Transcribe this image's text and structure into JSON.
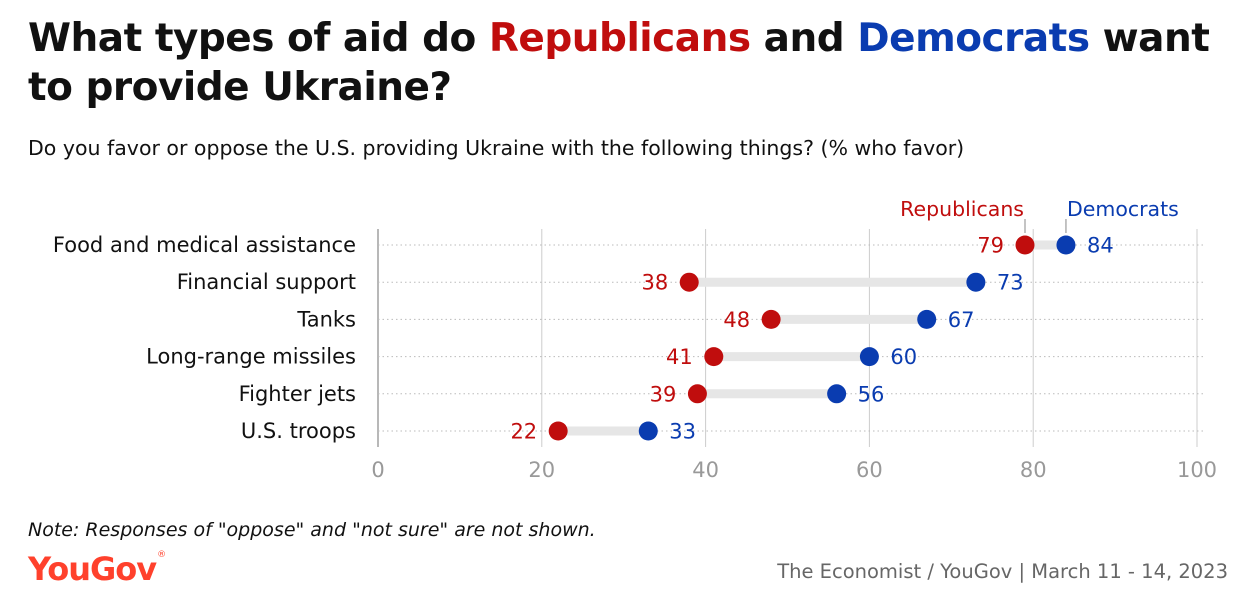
{
  "title": {
    "part1": "What types of aid do ",
    "rep": "Republicans",
    "part2": " and ",
    "dem": "Democrats",
    "part3": " want to provide Ukraine?"
  },
  "subtitle": "Do you favor or oppose the U.S. providing Ukraine with the following things? (% who favor)",
  "note": "Note: Responses of \"oppose\" and \"not sure\" are not shown.",
  "brand": "YouGov",
  "source": "The Economist / YouGov | March 11 - 14, 2023",
  "colors": {
    "republicans": "#c00d0d",
    "democrats": "#0a3cb0",
    "connector": "#e6e6e6",
    "grid": "#cccccc",
    "tick": "#999999",
    "logo": "#ff412c"
  },
  "chart_data": {
    "type": "dot-plot",
    "categories": [
      "Food and medical assistance",
      "Financial support",
      "Tanks",
      "Long-range missiles",
      "Fighter jets",
      "U.S. troops"
    ],
    "series": [
      {
        "name": "Republicans",
        "values": [
          79,
          38,
          48,
          41,
          39,
          22
        ]
      },
      {
        "name": "Democrats",
        "values": [
          84,
          73,
          67,
          60,
          56,
          33
        ]
      }
    ],
    "xlim": [
      0,
      100
    ],
    "xticks": [
      0,
      20,
      40,
      60,
      80,
      100
    ],
    "grid": true,
    "legend": "top, labels above first row"
  }
}
